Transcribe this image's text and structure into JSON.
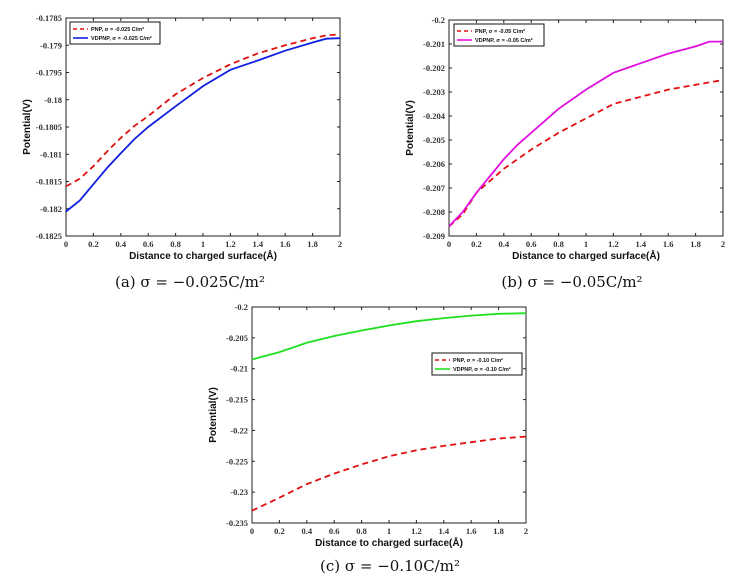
{
  "chart_data": [
    {
      "type": "line",
      "id": "a",
      "caption": "(a) σ = −0.025C/m²",
      "xlabel": "Distance to charged surface(Å)",
      "ylabel": "Potential(V)",
      "xlim": [
        0,
        2
      ],
      "ylim": [
        -0.1825,
        -0.1785
      ],
      "xticks": [
        "0",
        "0.2",
        "0.4",
        "0.6",
        "0.8",
        "1",
        "1.2",
        "1.4",
        "1.6",
        "1.8",
        "2"
      ],
      "yticks": [
        "-0.1825",
        "-0.182",
        "-0.1815",
        "-0.181",
        "-0.1805",
        "-0.18",
        "-0.1795",
        "-0.179",
        "-0.1785"
      ],
      "legend_position": "top-left",
      "x": [
        0,
        0.1,
        0.2,
        0.3,
        0.4,
        0.5,
        0.6,
        0.8,
        1.0,
        1.2,
        1.4,
        1.6,
        1.8,
        1.9,
        2.0
      ],
      "series": [
        {
          "name": "PNP,    σ = -0.025 C/m²",
          "color": "#e01010",
          "dash": true,
          "values": [
            -0.18159,
            -0.18145,
            -0.18122,
            -0.18095,
            -0.1807,
            -0.18048,
            -0.1803,
            -0.1799,
            -0.1796,
            -0.17935,
            -0.17915,
            -0.179,
            -0.17887,
            -0.17882,
            -0.1788
          ]
        },
        {
          "name": "VDPNP, σ = -0.025 C/m²",
          "color": "#1020e0",
          "dash": false,
          "values": [
            -0.18205,
            -0.18185,
            -0.18155,
            -0.18125,
            -0.18098,
            -0.18072,
            -0.1805,
            -0.18012,
            -0.17975,
            -0.17945,
            -0.17928,
            -0.1791,
            -0.17895,
            -0.17888,
            -0.17887
          ]
        }
      ]
    },
    {
      "type": "line",
      "id": "b",
      "caption": "(b) σ = −0.05C/m²",
      "xlabel": "Distance to charged surface(Å)",
      "ylabel": "Potential(V)",
      "xlim": [
        0,
        2
      ],
      "ylim": [
        -0.209,
        -0.2
      ],
      "xticks": [
        "0",
        "0.2",
        "0.4",
        "0.6",
        "0.8",
        "1",
        "1.2",
        "1.4",
        "1.6",
        "1.8",
        "2"
      ],
      "yticks": [
        "-0.209",
        "-0.208",
        "-0.207",
        "-0.206",
        "-0.205",
        "-0.204",
        "-0.203",
        "-0.202",
        "-0.201",
        "-0.2"
      ],
      "legend_position": "top-left",
      "x": [
        0,
        0.1,
        0.2,
        0.3,
        0.4,
        0.5,
        0.6,
        0.8,
        1.0,
        1.2,
        1.4,
        1.6,
        1.8,
        1.9,
        2.0
      ],
      "series": [
        {
          "name": "PNP,    σ = -0.05 C/m²",
          "color": "#e01010",
          "dash": true,
          "values": [
            -0.2086,
            -0.2081,
            -0.2072,
            -0.2067,
            -0.2062,
            -0.2058,
            -0.2054,
            -0.2047,
            -0.2041,
            -0.2035,
            -0.2032,
            -0.2029,
            -0.2027,
            -0.2026,
            -0.2025
          ]
        },
        {
          "name": "VDPNP, σ = -0.05 C/m²",
          "color": "#e010e0",
          "dash": false,
          "values": [
            -0.2086,
            -0.208,
            -0.2072,
            -0.2065,
            -0.2058,
            -0.2052,
            -0.2047,
            -0.2037,
            -0.2029,
            -0.2022,
            -0.2018,
            -0.2014,
            -0.2011,
            -0.2009,
            -0.2009
          ]
        }
      ]
    },
    {
      "type": "line",
      "id": "c",
      "caption": "(c) σ = −0.10C/m²",
      "xlabel": "Distance to charged surface(Å)",
      "ylabel": "Potential(V)",
      "xlim": [
        0,
        2
      ],
      "ylim": [
        -0.235,
        -0.2
      ],
      "xticks": [
        "0",
        "0.2",
        "0.4",
        "0.6",
        "0.8",
        "1",
        "1.2",
        "1.4",
        "1.6",
        "1.8",
        "2"
      ],
      "yticks": [
        "-0.235",
        "-0.23",
        "-0.225",
        "-0.22",
        "-0.215",
        "-0.21",
        "-0.205",
        "-0.2"
      ],
      "legend_position": "right",
      "x": [
        0,
        0.2,
        0.4,
        0.6,
        0.8,
        1.0,
        1.2,
        1.4,
        1.6,
        1.8,
        2.0
      ],
      "series": [
        {
          "name": "PNP,    σ = -0.10 C/m²",
          "color": "#e01010",
          "dash": true,
          "values": [
            -0.233,
            -0.2309,
            -0.2287,
            -0.227,
            -0.2255,
            -0.2242,
            -0.2232,
            -0.2225,
            -0.2219,
            -0.2213,
            -0.221
          ]
        },
        {
          "name": "VDPNP, σ = -0.10 C/m²",
          "color": "#20e020",
          "dash": false,
          "values": [
            -0.2085,
            -0.2073,
            -0.2058,
            -0.2047,
            -0.2038,
            -0.203,
            -0.2023,
            -0.2018,
            -0.2014,
            -0.2011,
            -0.201
          ]
        }
      ]
    }
  ]
}
